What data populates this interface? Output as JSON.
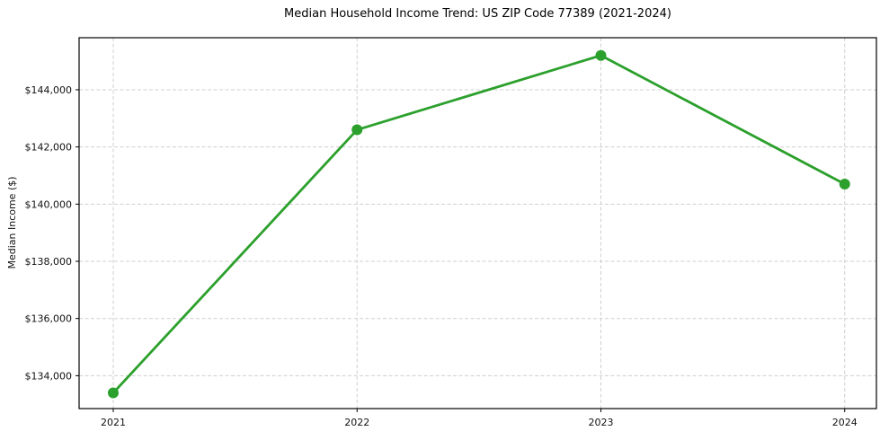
{
  "title": "Median Household Income Trend: US ZIP Code 77389 (2021-2024)",
  "chart_data": {
    "type": "line",
    "title": "Median Household Income Trend: US ZIP Code 77389 (2021-2024)",
    "series_name": "Median Household Income",
    "x": [
      2021,
      2022,
      2023,
      2024
    ],
    "values": [
      133400,
      142600,
      145200,
      140700
    ],
    "xlabel": "",
    "ylabel": "Median Income ($)",
    "xlim": [
      2020.86,
      2024.13
    ],
    "ylim": [
      132850,
      145820
    ],
    "xticks": [
      2021,
      2022,
      2023,
      2024
    ],
    "xtick_labels": [
      "2021",
      "2022",
      "2023",
      "2024"
    ],
    "yticks": [
      134000,
      136000,
      138000,
      140000,
      142000,
      144000
    ],
    "ytick_labels": [
      "$134,000",
      "$136,000",
      "$138,000",
      "$140,000",
      "$142,000",
      "$144,000"
    ],
    "grid": true,
    "grid_style": "dashed",
    "grid_color": "#cfcfcf",
    "line_color": "#2ca02c",
    "marker": "circle",
    "marker_radius": 6,
    "line_width": 2.8,
    "legend": "none"
  }
}
